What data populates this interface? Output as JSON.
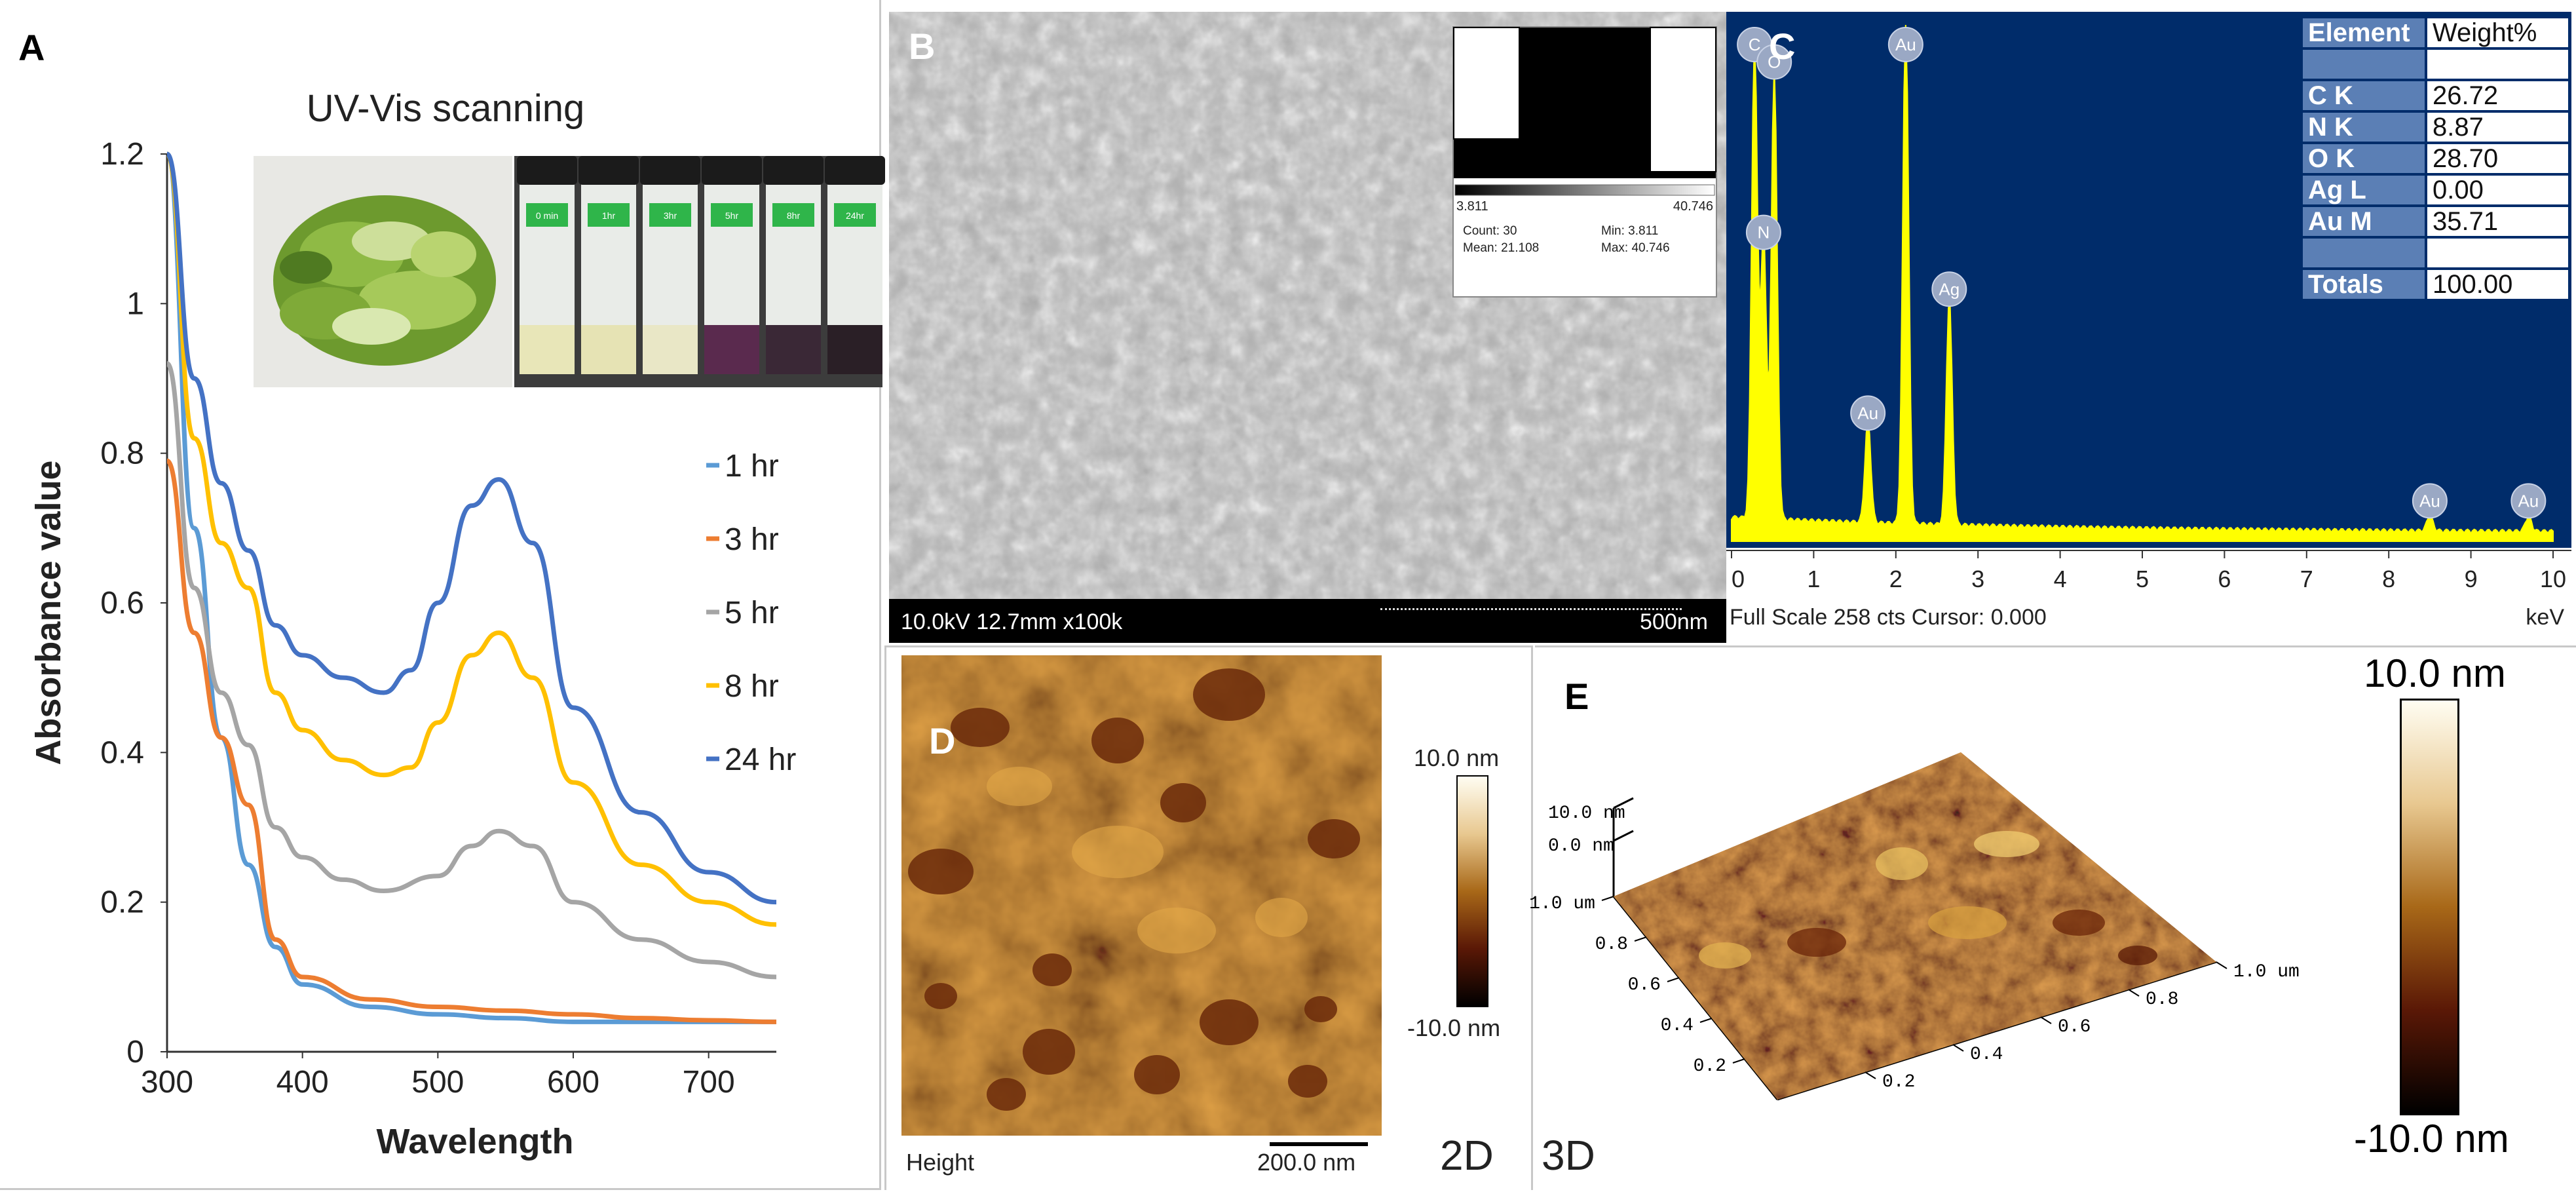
{
  "panels": {
    "a_label": "A",
    "b_label": "B",
    "c_label": "C",
    "d_label": "D",
    "e_label": "E"
  },
  "chart_data": [
    {
      "type": "line",
      "panel": "A",
      "title": "UV-Vis scanning",
      "xlabel": "Wavelength",
      "ylabel": "Absorbance value",
      "xlim": [
        300,
        750
      ],
      "ylim": [
        0,
        1.2
      ],
      "x_ticks": [
        "300",
        "400",
        "500",
        "600",
        "700"
      ],
      "y_ticks": [
        "0",
        "0.2",
        "0.4",
        "0.6",
        "0.8",
        "1",
        "1.2"
      ],
      "legend_position": "right",
      "series": [
        {
          "name": "1 hr",
          "color": "#5b9bd5",
          "x": [
            300,
            320,
            340,
            360,
            380,
            400,
            450,
            500,
            550,
            600,
            650,
            700,
            750
          ],
          "y": [
            1.2,
            0.7,
            0.42,
            0.25,
            0.14,
            0.09,
            0.06,
            0.05,
            0.045,
            0.04,
            0.04,
            0.04,
            0.04
          ]
        },
        {
          "name": "3 hr",
          "color": "#ed7d31",
          "x": [
            300,
            320,
            340,
            360,
            380,
            400,
            450,
            500,
            550,
            600,
            650,
            700,
            750
          ],
          "y": [
            0.79,
            0.56,
            0.42,
            0.33,
            0.15,
            0.1,
            0.07,
            0.06,
            0.055,
            0.05,
            0.045,
            0.042,
            0.04
          ]
        },
        {
          "name": "5 hr",
          "color": "#a5a5a5",
          "x": [
            300,
            320,
            340,
            360,
            380,
            400,
            430,
            460,
            500,
            525,
            545,
            570,
            600,
            650,
            700,
            750
          ],
          "y": [
            0.92,
            0.62,
            0.48,
            0.41,
            0.3,
            0.26,
            0.23,
            0.215,
            0.235,
            0.275,
            0.295,
            0.275,
            0.2,
            0.15,
            0.12,
            0.1
          ]
        },
        {
          "name": "8 hr",
          "color": "#ffc000",
          "x": [
            300,
            320,
            340,
            360,
            380,
            400,
            430,
            460,
            480,
            500,
            525,
            545,
            570,
            600,
            650,
            700,
            750
          ],
          "y": [
            1.2,
            0.82,
            0.68,
            0.62,
            0.48,
            0.43,
            0.39,
            0.37,
            0.38,
            0.44,
            0.53,
            0.56,
            0.5,
            0.36,
            0.25,
            0.2,
            0.17
          ]
        },
        {
          "name": "24 hr",
          "color": "#4472c4",
          "x": [
            300,
            320,
            340,
            360,
            380,
            400,
            430,
            460,
            480,
            500,
            525,
            545,
            570,
            600,
            650,
            700,
            750
          ],
          "y": [
            1.2,
            0.9,
            0.76,
            0.67,
            0.57,
            0.53,
            0.5,
            0.48,
            0.51,
            0.6,
            0.73,
            0.765,
            0.68,
            0.46,
            0.32,
            0.24,
            0.2
          ]
        }
      ]
    },
    {
      "type": "bar",
      "panel": "C",
      "xlabel": "keV",
      "xlim": [
        0,
        10
      ],
      "x_ticks": [
        "0",
        "1",
        "2",
        "3",
        "4",
        "5",
        "6",
        "7",
        "8",
        "9",
        "10"
      ],
      "footer": "Full Scale 258 cts Cursor: 0.000",
      "peaks": [
        {
          "label": "C",
          "kev": 0.28,
          "rel": 0.93
        },
        {
          "label": "O",
          "kev": 0.52,
          "rel": 0.88
        },
        {
          "label": "N",
          "kev": 0.39,
          "rel": 0.55
        },
        {
          "label": "Au",
          "kev": 2.12,
          "rel": 0.98
        },
        {
          "label": "Ag",
          "kev": 2.65,
          "rel": 0.44
        },
        {
          "label": "Au",
          "kev": 1.66,
          "rel": 0.2
        },
        {
          "label": "Au",
          "kev": 8.5,
          "rel": 0.03
        },
        {
          "label": "Au",
          "kev": 9.7,
          "rel": 0.03
        }
      ],
      "table": {
        "headers": [
          "Element",
          "Weight%"
        ],
        "rows": [
          [
            "C K",
            "26.72"
          ],
          [
            "N K",
            "8.87"
          ],
          [
            "O K",
            "28.70"
          ],
          [
            "Ag L",
            "0.00"
          ],
          [
            "Au M",
            "35.71"
          ]
        ],
        "total_label": "Totals",
        "total_value": "100.00"
      }
    }
  ],
  "photo_inset": {
    "vial_labels": [
      "0 min",
      "1hr",
      "3hr",
      "5hr",
      "8hr",
      "24hr"
    ],
    "liquid_colors": [
      "#e8e6b8",
      "#e6e3b4",
      "#e9e7c6",
      "#5a2a4e",
      "#3a2836",
      "#2a1f26"
    ]
  },
  "sem": {
    "footer_left": "10.0kV 12.7mm x100k",
    "scale_label": "500nm",
    "histogram": {
      "range_min": "3.811",
      "range_max": "40.746",
      "count": "Count: 30",
      "mean": "Mean: 21.108",
      "min": "Min: 3.811",
      "max": "Max: 40.746"
    }
  },
  "afm2d": {
    "height_label": "Height",
    "scale_label": "200.0 nm",
    "corner_label": "2D",
    "colorbar_max": "10.0 nm",
    "colorbar_min": "-10.0 nm"
  },
  "afm3d": {
    "corner_label": "3D",
    "z_top": "10.0 nm",
    "z_zero": "0.0 nm",
    "left_axis": [
      "1.0 um",
      "0.8",
      "0.6",
      "0.4",
      "0.2"
    ],
    "right_axis": [
      "1.0 um",
      "0.8",
      "0.6",
      "0.4",
      "0.2"
    ],
    "colorbar_max": "10.0 nm",
    "colorbar_min": "-10.0 nm"
  }
}
